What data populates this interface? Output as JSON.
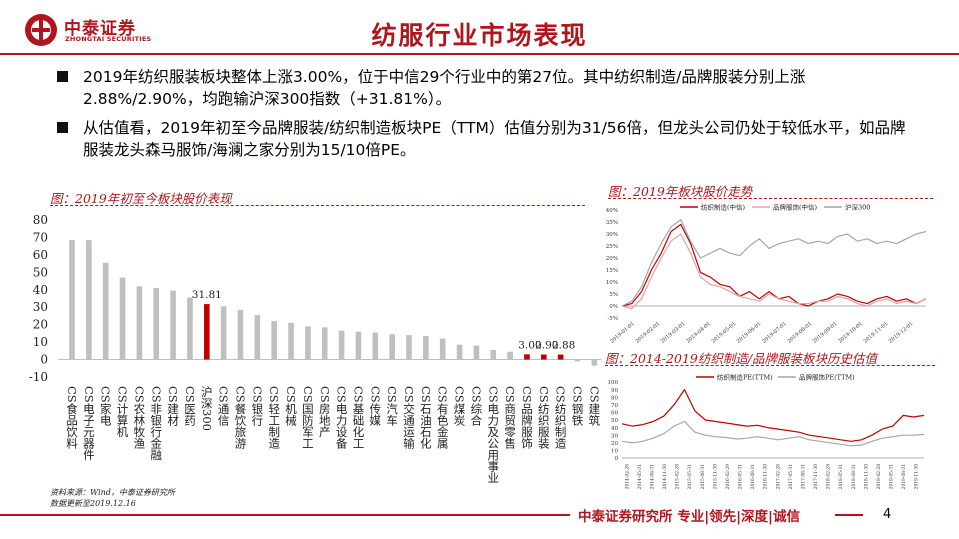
{
  "header": {
    "logo_cn": "中泰证券",
    "logo_en": "ZHONGTAI SECURITIES",
    "title": "纺服行业市场表现"
  },
  "bullets": [
    "2019年纺织服装板块整体上涨3.00%，位于中信29个行业中的第27位。其中纺织制造/品牌服装分别上涨2.88%/2.90%，均跑输沪深300指数（+31.81%）。",
    "从估值看，2019年初至今品牌服装/纺织制造板块PE（TTM）估值分别为31/56倍，但龙头公司仍处于较低水平，如品牌服装龙头森马服饰/海澜之家分别为15/10倍PE。"
  ],
  "captions": {
    "left": "图：2019年初至今板块股价表现",
    "right_top": "图：2019年板块股价走势",
    "right_bottom": "图：2014-2019纺织制造/品牌服装板块历史估值"
  },
  "source": {
    "line1": "资料来源：Wind，中泰证券研究所",
    "line2": "数据更新至2019.12.16"
  },
  "footer": {
    "text": "中泰证券研究所 专业|领先|深度|诚信",
    "page": "4"
  },
  "colors": {
    "brand": "#b1151c",
    "bar_gray": "#bfbfbf",
    "bar_red": "#c00000"
  },
  "chart_data": [
    {
      "type": "bar",
      "categories": [
        "CS食品饮料",
        "CS电子元器件",
        "CS家电",
        "CS计算机",
        "CS农林牧渔",
        "CS非银行金融",
        "CS建材",
        "CS医药",
        "沪深300",
        "CS通信",
        "CS餐饮旅游",
        "CS银行",
        "CS轻工制造",
        "CS机械",
        "CS国防军工",
        "CS房地产",
        "CS电力设备",
        "CS基础化工",
        "CS传媒",
        "CS汽车",
        "CS交通运输",
        "CS石油石化",
        "CS有色金属",
        "CS煤炭",
        "CS综合",
        "CS电力及公用事业",
        "CS商贸零售",
        "CS品牌服饰",
        "CS纺织服装",
        "CS纺织制造",
        "CS钢铁",
        "CS建筑"
      ],
      "values": [
        68.5,
        68.5,
        55.5,
        47,
        42,
        41,
        39.5,
        35.5,
        31.81,
        30.5,
        28.5,
        25.5,
        22,
        21,
        19,
        18.5,
        16.5,
        16,
        15.5,
        14.5,
        14,
        13.5,
        12,
        8.5,
        8,
        5.5,
        4.5,
        3.0,
        2.9,
        2.88,
        -1,
        -3.5
      ],
      "highlight": [
        8,
        27,
        28,
        29
      ],
      "data_labels": [
        {
          "index": 8,
          "text": "31.81"
        },
        {
          "index": 27,
          "text": "3.00"
        },
        {
          "index": 28,
          "text": "2.90"
        },
        {
          "index": 29,
          "text": "2.88"
        }
      ],
      "yticks": [
        "80",
        "70",
        "60",
        "50",
        "40",
        "30",
        "20",
        "10",
        "0",
        "-10"
      ],
      "ylim": [
        -10,
        80
      ]
    },
    {
      "type": "line",
      "legend": [
        "纺织制造(中信)",
        "品牌服饰(中信)",
        "沪深300"
      ],
      "yticks": [
        "40%",
        "35%",
        "30%",
        "25%",
        "20%",
        "15%",
        "10%",
        "5%",
        "0%",
        "-5%"
      ],
      "ylim": [
        -5,
        40
      ],
      "xticks": [
        "2019-01-01",
        "2019-02-01",
        "2019-03-01",
        "2019-04-01",
        "2019-05-01",
        "2019-06-01",
        "2019-07-01",
        "2019-08-01",
        "2019-09-01",
        "2019-10-01",
        "2019-11-01",
        "2019-12-01"
      ],
      "series": [
        {
          "name": "纺织制造(中信)",
          "color": "#c00000",
          "values": [
            0,
            1,
            6,
            15,
            22,
            31,
            34,
            26,
            14,
            12,
            9,
            8,
            4,
            6,
            3,
            6,
            3,
            4,
            1,
            0,
            2,
            3,
            5,
            4,
            2,
            1,
            3,
            4,
            2,
            3,
            1,
            3
          ]
        },
        {
          "name": "品牌服饰(中信)",
          "color": "#e6a0a0",
          "values": [
            0,
            -1,
            3,
            12,
            20,
            27,
            30,
            22,
            12,
            9,
            8,
            6,
            4,
            3,
            2,
            5,
            3,
            2,
            1,
            1,
            2,
            2,
            4,
            3,
            1,
            0,
            2,
            3,
            1,
            2,
            1,
            3
          ]
        },
        {
          "name": "沪深300",
          "color": "#a6a6a6",
          "values": [
            0,
            2,
            8,
            18,
            26,
            33,
            36,
            27,
            20,
            22,
            24,
            22,
            21,
            25,
            28,
            24,
            26,
            27,
            28,
            26,
            27,
            26,
            29,
            30,
            27,
            28,
            26,
            27,
            26,
            28,
            30,
            31
          ]
        }
      ]
    },
    {
      "type": "line",
      "legend": [
        "纺织制造PE(TTM)",
        "品牌服饰PE(TTM)"
      ],
      "yticks": [
        "100",
        "90",
        "80",
        "70",
        "60",
        "50",
        "40",
        "30",
        "20",
        "10",
        "0"
      ],
      "ylim": [
        0,
        100
      ],
      "xticks": [
        "2014-02-28",
        "2014-05-31",
        "2014-08-31",
        "2014-11-30",
        "2015-02-28",
        "2015-05-31",
        "2015-08-31",
        "2015-11-30",
        "2016-02-29",
        "2016-05-31",
        "2016-08-31",
        "2016-11-30",
        "2017-02-28",
        "2017-05-31",
        "2017-08-31",
        "2017-11-30",
        "2018-02-28",
        "2018-05-31",
        "2018-08-31",
        "2018-11-30",
        "2019-02-28",
        "2019-05-31",
        "2019-08-31",
        "2019-11-30"
      ],
      "series": [
        {
          "name": "纺织制造PE(TTM)",
          "color": "#c00000",
          "values": [
            45,
            42,
            44,
            48,
            55,
            70,
            90,
            62,
            50,
            48,
            46,
            44,
            42,
            43,
            40,
            38,
            36,
            34,
            30,
            28,
            26,
            24,
            22,
            24,
            30,
            38,
            42,
            56,
            54,
            56
          ]
        },
        {
          "name": "品牌服饰PE(TTM)",
          "color": "#a6a6a6",
          "values": [
            22,
            20,
            22,
            26,
            32,
            42,
            48,
            34,
            30,
            28,
            27,
            25,
            26,
            28,
            26,
            24,
            26,
            28,
            24,
            22,
            20,
            18,
            16,
            17,
            22,
            26,
            28,
            30,
            30,
            31
          ]
        }
      ]
    }
  ]
}
